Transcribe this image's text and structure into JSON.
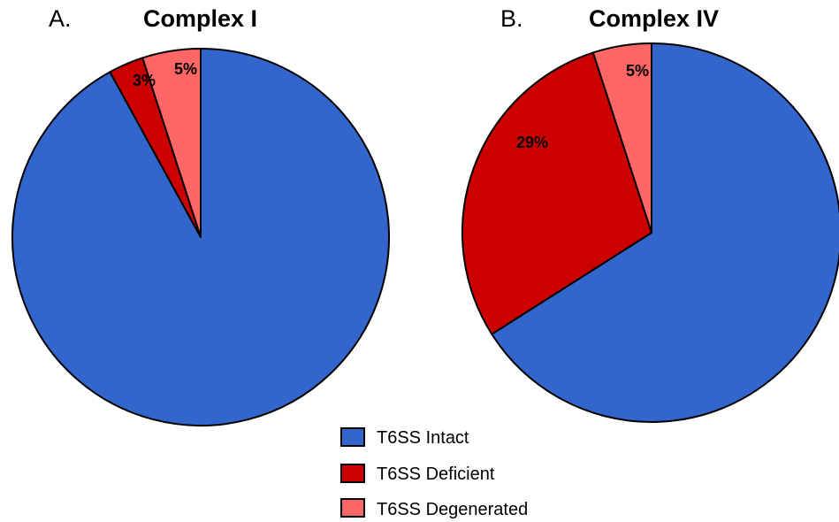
{
  "chart_data": [
    {
      "type": "pie",
      "panel": "A.",
      "title": "Complex I",
      "categories": [
        "T6SS Intact",
        "T6SS Deficient",
        "T6SS Degenerated"
      ],
      "values": [
        92,
        3,
        5
      ],
      "labels": [
        "",
        "3%",
        "5%"
      ],
      "colors": [
        "#3366cc",
        "#cc0000",
        "#ff6666"
      ]
    },
    {
      "type": "pie",
      "panel": "B.",
      "title": "Complex IV",
      "categories": [
        "T6SS Intact",
        "T6SS Deficient",
        "T6SS Degenerated"
      ],
      "values": [
        66,
        29,
        5
      ],
      "labels": [
        "",
        "29%",
        "5%"
      ],
      "colors": [
        "#3366cc",
        "#cc0000",
        "#ff6666"
      ]
    }
  ],
  "legend": {
    "placement": "bottom-center",
    "items": [
      {
        "label": "T6SS Intact",
        "color": "#3366cc"
      },
      {
        "label": "T6SS Deficient",
        "color": "#cc0000"
      },
      {
        "label": "T6SS Degenerated",
        "color": "#ff6666"
      }
    ]
  }
}
